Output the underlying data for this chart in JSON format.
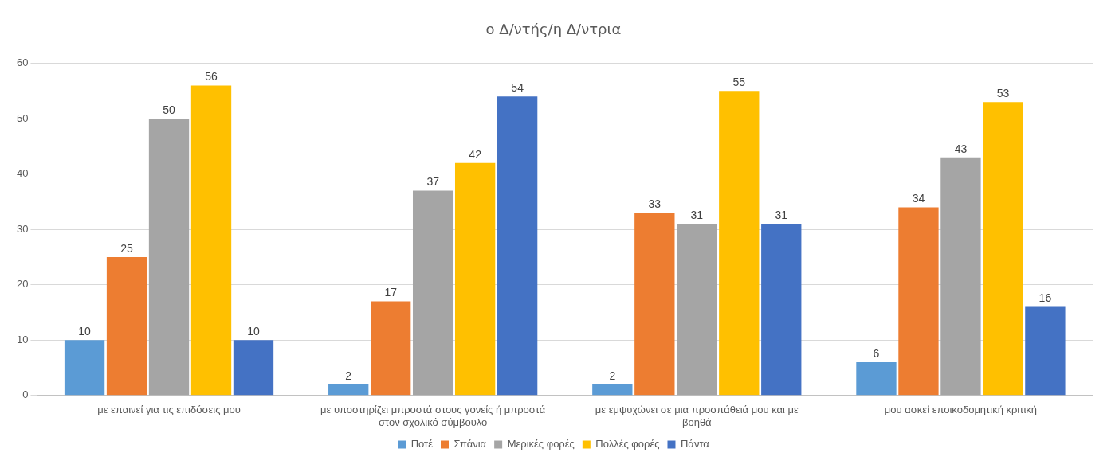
{
  "chart_data": {
    "type": "bar",
    "title": "ο Δ/ντής/η Δ/ντρια",
    "categories": [
      "με επαινεί για τις επιδόσεις μου",
      "με υποστηρίζει μπροστά στους γονείς ή μπροστά στον σχολικό σύμβουλο",
      "με εμψυχώνει σε μια προσπάθειά μου και με βοηθά",
      "μου ασκεί εποικοδομητική κριτική"
    ],
    "series": [
      {
        "name": "Ποτέ",
        "color": "#5b9bd5",
        "values": [
          10,
          2,
          2,
          6
        ]
      },
      {
        "name": "Σπάνια",
        "color": "#ed7d31",
        "values": [
          25,
          17,
          33,
          34
        ]
      },
      {
        "name": "Μερικές φορές",
        "color": "#a5a5a5",
        "values": [
          50,
          37,
          31,
          43
        ]
      },
      {
        "name": "Πολλές φορές",
        "color": "#ffc000",
        "values": [
          56,
          42,
          55,
          53
        ]
      },
      {
        "name": "Πάντα",
        "color": "#4472c4",
        "values": [
          10,
          54,
          31,
          16
        ]
      }
    ],
    "ylim": [
      0,
      60
    ],
    "yticks": [
      0,
      10,
      20,
      30,
      40,
      50,
      60
    ],
    "grid": "y",
    "legend": "bottom",
    "data_labels": true
  }
}
